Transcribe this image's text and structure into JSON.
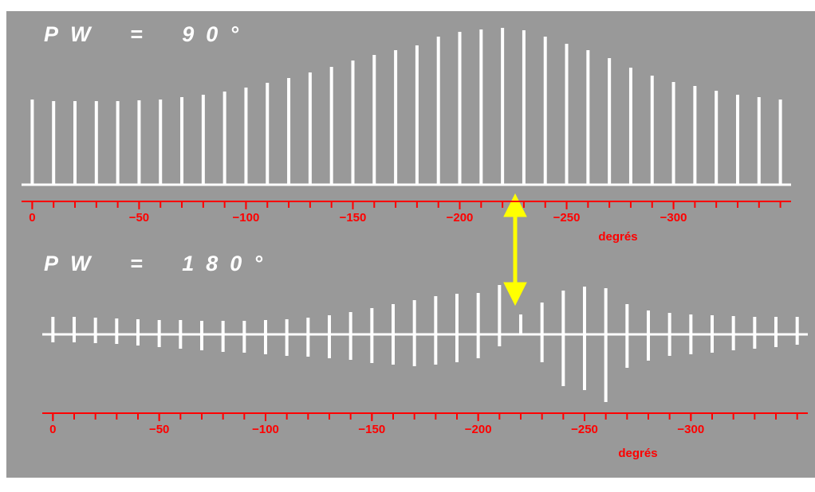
{
  "chart_data": [
    {
      "type": "stick",
      "title": "PW = 90°",
      "xlabel": "degrés",
      "color": "#ffffff",
      "axis_color": "#ff0000",
      "x": [
        0,
        -10,
        -20,
        -30,
        -40,
        -50,
        -60,
        -70,
        -80,
        -90,
        -100,
        -110,
        -120,
        -130,
        -140,
        -150,
        -160,
        -170,
        -180,
        -190,
        -200,
        -210,
        -220,
        -230,
        -240,
        -250,
        -260,
        -270,
        -280,
        -290,
        -300,
        -310,
        -320,
        -330,
        -340,
        -350
      ],
      "values": [
        107,
        105,
        105,
        105,
        105,
        106,
        107,
        110,
        113,
        117,
        122,
        128,
        134,
        141,
        148,
        156,
        163,
        169,
        175,
        186,
        192,
        195,
        197,
        194,
        186,
        177,
        169,
        159,
        147,
        137,
        129,
        124,
        118,
        113,
        110,
        107
      ],
      "xlim": [
        5,
        -355
      ],
      "ylim": [
        0,
        200
      ],
      "xticks": [
        0,
        {
          "value": -50,
          "label": "−50"
        },
        {
          "value": -100,
          "label": "−100"
        },
        {
          "value": -150,
          "label": "−150"
        },
        {
          "value": -200,
          "label": "−200"
        },
        {
          "value": -250,
          "label": "−250"
        },
        {
          "value": -300,
          "label": "−300"
        }
      ]
    },
    {
      "type": "stick_range",
      "title": "PW = 180°",
      "xlabel": "degrés",
      "color": "#ffffff",
      "axis_color": "#ff0000",
      "x": [
        0,
        -10,
        -20,
        -30,
        -40,
        -50,
        -60,
        -70,
        -80,
        -90,
        -100,
        -110,
        -120,
        -130,
        -140,
        -150,
        -160,
        -170,
        -180,
        -190,
        -200,
        -210,
        -220,
        -230,
        -240,
        -250,
        -260,
        -270,
        -280,
        -290,
        -300,
        -310,
        -320,
        -330,
        -340,
        -350
      ],
      "upper": [
        22,
        22,
        21,
        20,
        19,
        18,
        18,
        17,
        17,
        17,
        18,
        19,
        21,
        24,
        28,
        33,
        38,
        43,
        48,
        51,
        52,
        62,
        25,
        40,
        55,
        60,
        58,
        38,
        30,
        27,
        25,
        24,
        23,
        22,
        22,
        22
      ],
      "lower": [
        -10,
        -10,
        -11,
        -12,
        -14,
        -16,
        -18,
        -20,
        -22,
        -23,
        -25,
        -27,
        -28,
        -30,
        -32,
        -36,
        -38,
        -40,
        -38,
        -35,
        -30,
        -15,
        0,
        -35,
        -65,
        -70,
        -85,
        -42,
        -33,
        -27,
        -25,
        -23,
        -20,
        -18,
        -16,
        -13
      ],
      "xlim": [
        5,
        -355
      ],
      "ylim": [
        -100,
        100
      ],
      "xticks": [
        0,
        {
          "value": -50,
          "label": "−50"
        },
        {
          "value": -100,
          "label": "−100"
        },
        {
          "value": -150,
          "label": "−150"
        },
        {
          "value": -200,
          "label": "−200"
        },
        {
          "value": -250,
          "label": "−250"
        },
        {
          "value": -300,
          "label": "−300"
        }
      ]
    }
  ]
}
